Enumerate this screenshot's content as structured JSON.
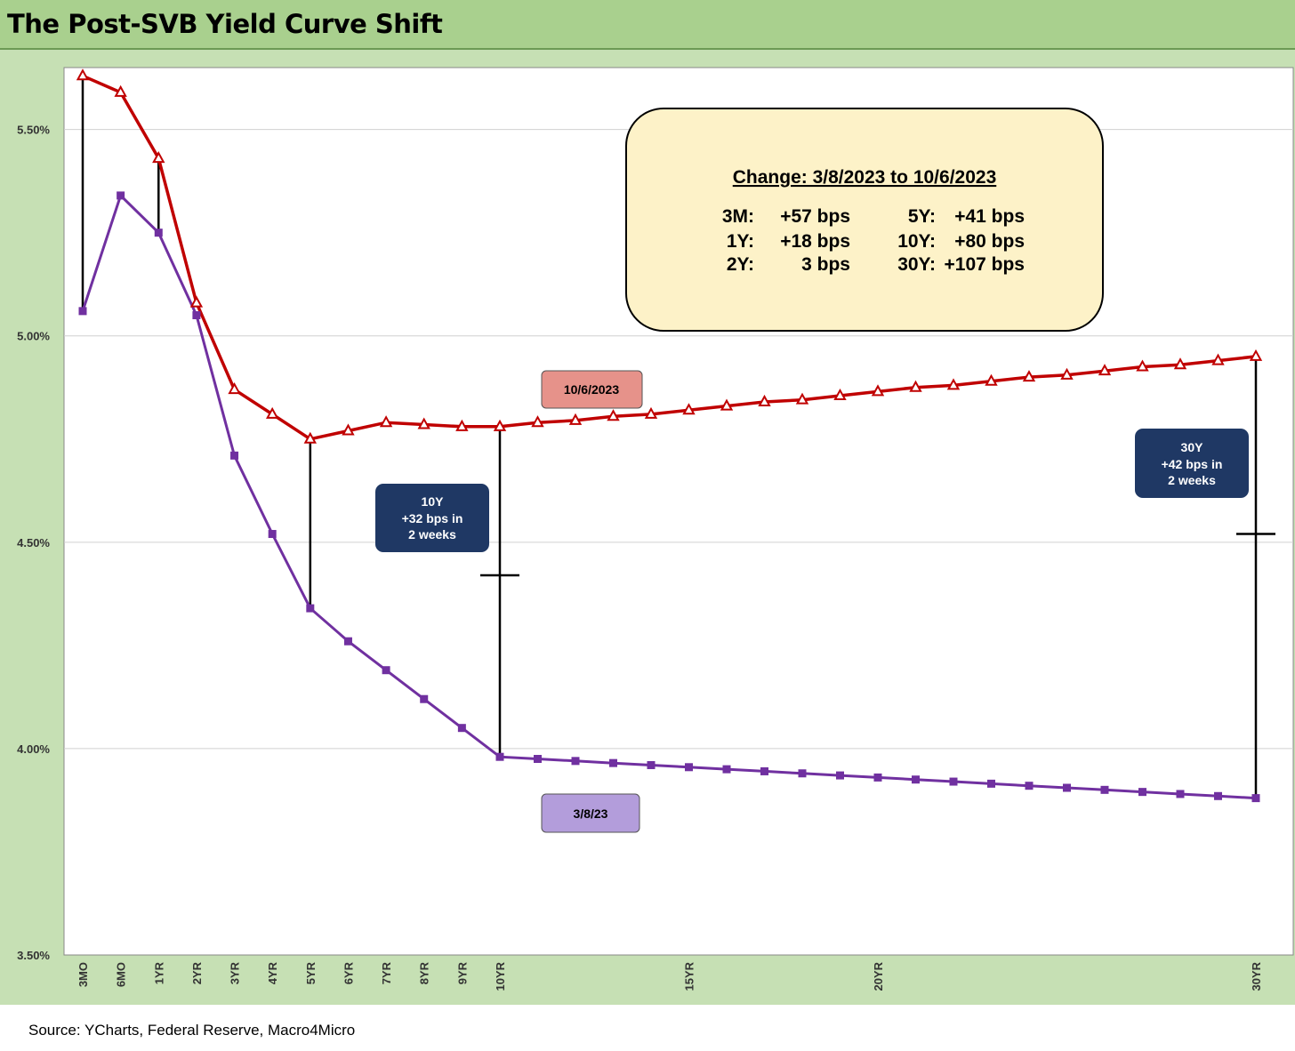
{
  "title": "The Post-SVB Yield Curve Shift",
  "source": "Source: YCharts, Federal Reserve, Macro4Micro",
  "colors": {
    "new_curve": "#c00000",
    "old_curve": "#7030a0",
    "header_bg": "#a9d08e",
    "chart_bg": "#c6e0b4",
    "info_box": "#fdf2c8",
    "callout_box": "#1f3864"
  },
  "info_box": {
    "title": "Change: 3/8/2023 to 10/6/2023",
    "rows": [
      {
        "l_label": "3M:",
        "l_value": "+57 bps",
        "r_label": "5Y:",
        "r_value": "+41 bps"
      },
      {
        "l_label": "1Y:",
        "l_value": "+18 bps",
        "r_label": "10Y:",
        "r_value": "+80 bps"
      },
      {
        "l_label": "2Y:",
        "l_value": "3 bps",
        "r_label": "30Y:",
        "r_value": "+107 bps"
      }
    ]
  },
  "callouts": {
    "ten_year": [
      "10Y",
      "+32 bps in",
      "2 weeks"
    ],
    "thirty_year": [
      "30Y",
      "+42 bps in",
      "2 weeks"
    ]
  },
  "chart_data": {
    "type": "line",
    "title": "The Post-SVB Yield Curve Shift",
    "ylim": [
      3.5,
      5.65
    ],
    "yticks": [
      3.5,
      4.0,
      4.5,
      5.0,
      5.5
    ],
    "ytick_labels": [
      "3.50%",
      "4.00%",
      "4.50%",
      "5.00%",
      "5.50%"
    ],
    "grid": true,
    "x_tick_labels": [
      "3MO",
      "6MO",
      "1YR",
      "2YR",
      "3YR",
      "4YR",
      "5YR",
      "6YR",
      "7YR",
      "8YR",
      "9YR",
      "10YR",
      "15YR",
      "20YR",
      "30YR"
    ],
    "x_tick_positions_years": [
      0.25,
      0.5,
      1,
      2,
      3,
      4,
      5,
      6,
      7,
      8,
      9,
      10,
      15,
      20,
      30
    ],
    "series": [
      {
        "name": "10/6/2023",
        "marker": "triangle",
        "points": [
          [
            0.25,
            5.63
          ],
          [
            0.5,
            5.59
          ],
          [
            1,
            5.43
          ],
          [
            2,
            5.08
          ],
          [
            3,
            4.87
          ],
          [
            4,
            4.81
          ],
          [
            5,
            4.75
          ],
          [
            6,
            4.77
          ],
          [
            7,
            4.79
          ],
          [
            8,
            4.785
          ],
          [
            9,
            4.78
          ],
          [
            10,
            4.78
          ],
          [
            11,
            4.79
          ],
          [
            12,
            4.795
          ],
          [
            13,
            4.805
          ],
          [
            14,
            4.81
          ],
          [
            15,
            4.82
          ],
          [
            16,
            4.83
          ],
          [
            17,
            4.84
          ],
          [
            18,
            4.845
          ],
          [
            19,
            4.855
          ],
          [
            20,
            4.865
          ],
          [
            21,
            4.875
          ],
          [
            22,
            4.88
          ],
          [
            23,
            4.89
          ],
          [
            24,
            4.9
          ],
          [
            25,
            4.905
          ],
          [
            26,
            4.915
          ],
          [
            27,
            4.925
          ],
          [
            28,
            4.93
          ],
          [
            29,
            4.94
          ],
          [
            30,
            4.95
          ]
        ]
      },
      {
        "name": "3/8/23",
        "marker": "square",
        "points": [
          [
            0.25,
            5.06
          ],
          [
            0.5,
            5.34
          ],
          [
            1,
            5.25
          ],
          [
            2,
            5.05
          ],
          [
            3,
            4.71
          ],
          [
            4,
            4.52
          ],
          [
            5,
            4.34
          ],
          [
            6,
            4.26
          ],
          [
            7,
            4.19
          ],
          [
            8,
            4.12
          ],
          [
            9,
            4.05
          ],
          [
            10,
            3.98
          ],
          [
            11,
            3.975
          ],
          [
            12,
            3.97
          ],
          [
            13,
            3.965
          ],
          [
            14,
            3.96
          ],
          [
            15,
            3.955
          ],
          [
            16,
            3.95
          ],
          [
            17,
            3.945
          ],
          [
            18,
            3.94
          ],
          [
            19,
            3.935
          ],
          [
            20,
            3.93
          ],
          [
            21,
            3.925
          ],
          [
            22,
            3.92
          ],
          [
            23,
            3.915
          ],
          [
            24,
            3.91
          ],
          [
            25,
            3.905
          ],
          [
            26,
            3.9
          ],
          [
            27,
            3.895
          ],
          [
            28,
            3.89
          ],
          [
            29,
            3.885
          ],
          [
            30,
            3.88
          ]
        ]
      }
    ],
    "connector_lines_at_years": [
      0.25,
      1,
      5,
      10,
      30
    ],
    "crosshair_marks": [
      [
        10,
        4.42
      ],
      [
        30,
        4.52
      ]
    ],
    "legend": [
      {
        "label": "10/6/2023",
        "placement": "above red curve near 15YR",
        "color": "#e6928a"
      },
      {
        "label": "3/8/23",
        "placement": "below purple curve near 15YR",
        "color": "#b39ddb"
      }
    ]
  }
}
